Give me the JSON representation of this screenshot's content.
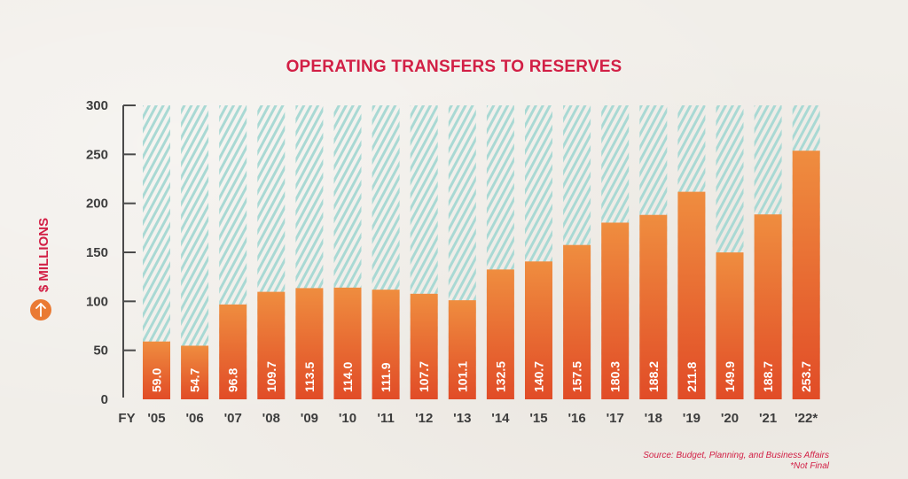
{
  "chart_data": {
    "type": "bar",
    "title": "OPERATING TRANSFERS TO RESERVES",
    "xlabel": "FY",
    "ylabel": "$ MILLIONS",
    "ylim": [
      0,
      300
    ],
    "yticks": [
      0,
      50,
      100,
      150,
      200,
      250,
      300
    ],
    "grid": false,
    "background_bar_max": 300,
    "categories": [
      "'05",
      "'06",
      "'07",
      "'08",
      "'09",
      "'10",
      "'11",
      "'12",
      "'13",
      "'14",
      "'15",
      "'16",
      "'17",
      "'18",
      "'19",
      "'20",
      "'21",
      "'22*"
    ],
    "values": [
      59.0,
      54.7,
      96.8,
      109.7,
      113.5,
      114.0,
      111.9,
      107.7,
      101.1,
      132.5,
      140.7,
      157.5,
      180.3,
      188.2,
      211.8,
      149.9,
      188.7,
      253.7
    ],
    "value_labels": [
      "59.0",
      "54.7",
      "96.8",
      "109.7",
      "113.5",
      "114.0",
      "111.9",
      "107.7",
      "101.1",
      "132.5",
      "140.7",
      "157.5",
      "180.3",
      "188.2",
      "211.8",
      "149.9",
      "188.7",
      "253.7"
    ],
    "annotations": [
      "Source: Budget, Planning, and Business Affairs",
      "*Not Final"
    ]
  },
  "ylabel_icon": "arrow-up-circle-icon",
  "colors": {
    "title": "#d21f45",
    "bar_top": "#ef8d3f",
    "bar_bottom": "#e14c27",
    "hatch": "#a9d9d4",
    "axis": "#4a4a4a",
    "icon": "#ea7a33"
  }
}
